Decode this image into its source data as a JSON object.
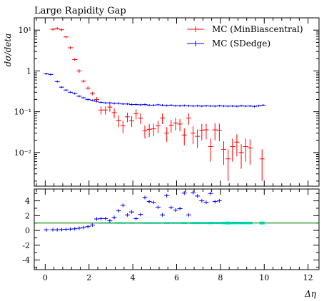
{
  "chart_data": [
    {
      "type": "scatter",
      "title": "Large Rapidity Gap",
      "xlabel": "",
      "ylabel": "dσ/deta",
      "xlim": [
        -0.5,
        12.5
      ],
      "ylim": [
        0.0015,
        20
      ],
      "yscale": "log",
      "yticks": [
        {
          "value": 10,
          "label": "10¹"
        },
        {
          "value": 1,
          "label": "1"
        },
        {
          "value": 0.1,
          "label": "10⁻¹"
        },
        {
          "value": 0.01,
          "label": "10⁻²"
        }
      ],
      "legend_placement": "top-right",
      "series": [
        {
          "name": "MC (MinBiascentral)",
          "color": "#ff0000",
          "points": [
            [
              0.35,
              10.5,
              0.8
            ],
            [
              0.55,
              11.0,
              0.8
            ],
            [
              0.75,
              10.2,
              0.8
            ],
            [
              0.95,
              6.8,
              0.5
            ],
            [
              1.15,
              3.7,
              0.3
            ],
            [
              1.35,
              1.9,
              0.15
            ],
            [
              1.55,
              1.0,
              0.1
            ],
            [
              1.75,
              0.56,
              0.05
            ],
            [
              1.95,
              0.38,
              0.04
            ],
            [
              2.15,
              0.28,
              0.03
            ],
            [
              2.35,
              0.2,
              0.03
            ],
            [
              2.55,
              0.11,
              0.025
            ],
            [
              2.75,
              0.11,
              0.025
            ],
            [
              2.95,
              0.13,
              0.03
            ],
            [
              3.15,
              0.095,
              0.025
            ],
            [
              3.35,
              0.062,
              0.02
            ],
            [
              3.55,
              0.045,
              0.015
            ],
            [
              3.75,
              0.075,
              0.02
            ],
            [
              3.95,
              0.06,
              0.018
            ],
            [
              4.15,
              0.09,
              0.025
            ],
            [
              4.35,
              0.07,
              0.02
            ],
            [
              4.55,
              0.034,
              0.012
            ],
            [
              4.75,
              0.037,
              0.013
            ],
            [
              4.95,
              0.038,
              0.013
            ],
            [
              5.15,
              0.045,
              0.015
            ],
            [
              5.35,
              0.07,
              0.02
            ],
            [
              5.55,
              0.03,
              0.012
            ],
            [
              5.75,
              0.047,
              0.016
            ],
            [
              5.95,
              0.053,
              0.018
            ],
            [
              6.15,
              0.05,
              0.017
            ],
            [
              6.35,
              0.027,
              0.012
            ],
            [
              6.55,
              0.07,
              0.022
            ],
            [
              6.75,
              0.03,
              0.014
            ],
            [
              6.95,
              0.025,
              0.012
            ],
            [
              7.15,
              0.035,
              0.015
            ],
            [
              7.35,
              0.036,
              0.015
            ],
            [
              7.55,
              0.014,
              0.008
            ],
            [
              7.75,
              0.036,
              0.016
            ],
            [
              7.95,
              0.035,
              0.016
            ],
            [
              8.15,
              0.012,
              0.007
            ],
            [
              8.35,
              0.007,
              0.005
            ],
            [
              8.55,
              0.014,
              0.008
            ],
            [
              8.75,
              0.018,
              0.01
            ],
            [
              8.95,
              0.01,
              0.006
            ],
            [
              9.15,
              0.014,
              0.008
            ],
            [
              9.35,
              0.013,
              0.008
            ],
            [
              9.9,
              0.007,
              0.005
            ]
          ]
        },
        {
          "name": "MC (SDedge)",
          "color": "#0000ff",
          "points": [
            [
              0.05,
              0.85
            ],
            [
              0.25,
              0.82
            ],
            [
              0.55,
              0.55
            ],
            [
              0.75,
              0.4
            ],
            [
              0.95,
              0.34
            ],
            [
              1.15,
              0.3
            ],
            [
              1.35,
              0.28
            ],
            [
              1.55,
              0.24
            ],
            [
              1.75,
              0.22
            ],
            [
              1.95,
              0.2
            ],
            [
              2.15,
              0.19
            ],
            [
              2.35,
              0.18
            ],
            [
              2.55,
              0.17
            ],
            [
              2.75,
              0.165
            ],
            [
              2.95,
              0.165
            ],
            [
              3.15,
              0.16
            ],
            [
              3.35,
              0.16
            ],
            [
              3.55,
              0.155
            ],
            [
              3.75,
              0.155
            ],
            [
              3.95,
              0.15
            ],
            [
              4.15,
              0.15
            ],
            [
              4.35,
              0.148
            ],
            [
              4.55,
              0.15
            ],
            [
              4.75,
              0.145
            ],
            [
              4.95,
              0.145
            ],
            [
              5.15,
              0.148
            ],
            [
              5.35,
              0.145
            ],
            [
              5.55,
              0.142
            ],
            [
              5.75,
              0.145
            ],
            [
              5.95,
              0.14
            ],
            [
              6.15,
              0.14
            ],
            [
              6.35,
              0.142
            ],
            [
              6.55,
              0.14
            ],
            [
              6.75,
              0.138
            ],
            [
              6.95,
              0.14
            ],
            [
              7.15,
              0.137
            ],
            [
              7.35,
              0.14
            ],
            [
              7.55,
              0.138
            ],
            [
              7.75,
              0.137
            ],
            [
              7.95,
              0.14
            ],
            [
              8.15,
              0.138
            ],
            [
              8.35,
              0.137
            ],
            [
              8.55,
              0.138
            ],
            [
              8.75,
              0.136
            ],
            [
              8.95,
              0.14
            ],
            [
              9.15,
              0.137
            ],
            [
              9.35,
              0.138
            ],
            [
              9.55,
              0.135
            ],
            [
              9.75,
              0.14
            ],
            [
              9.95,
              0.145
            ]
          ]
        }
      ]
    },
    {
      "type": "scatter",
      "title": "",
      "xlabel": "Δη",
      "ylabel": "",
      "xlim": [
        -0.5,
        12.5
      ],
      "ylim": [
        -5.3,
        5.6
      ],
      "xticks": [
        0,
        2,
        4,
        6,
        8,
        10,
        12
      ],
      "yticks": [
        -4,
        -2,
        0,
        2,
        4
      ],
      "reference_line": 1,
      "reference_color": "#008000",
      "band_color": "#00ffff",
      "series": [
        {
          "name": "",
          "color": "#0000ff",
          "points": [
            [
              0.05,
              0.08
            ],
            [
              0.35,
              0.1
            ],
            [
              0.55,
              0.09
            ],
            [
              0.75,
              0.12
            ],
            [
              0.95,
              0.14
            ],
            [
              1.15,
              0.18
            ],
            [
              1.35,
              0.22
            ],
            [
              1.55,
              0.3
            ],
            [
              1.75,
              0.4
            ],
            [
              1.95,
              0.52
            ],
            [
              2.15,
              0.72
            ],
            [
              2.35,
              1.55
            ],
            [
              2.55,
              1.6
            ],
            [
              2.75,
              1.6
            ],
            [
              2.95,
              1.3
            ],
            [
              3.15,
              1.75
            ],
            [
              3.35,
              2.65
            ],
            [
              3.55,
              3.4
            ],
            [
              3.75,
              2.1
            ],
            [
              3.95,
              2.5
            ],
            [
              4.15,
              1.6
            ],
            [
              4.35,
              2.15
            ],
            [
              4.55,
              4.45
            ],
            [
              4.75,
              3.9
            ],
            [
              4.95,
              3.8
            ],
            [
              5.15,
              3.15
            ],
            [
              5.35,
              2.1
            ],
            [
              5.55,
              4.7
            ],
            [
              5.75,
              3.1
            ],
            [
              5.95,
              2.75
            ],
            [
              6.15,
              2.95
            ],
            [
              6.35,
              5.05
            ],
            [
              6.55,
              2.1
            ],
            [
              6.75,
              5.1
            ],
            [
              6.95,
              4.65
            ],
            [
              7.15,
              4.0
            ],
            [
              7.35,
              3.8
            ],
            [
              7.55,
              5.0
            ],
            [
              7.75,
              3.9
            ],
            [
              7.95,
              4.0
            ]
          ]
        }
      ]
    }
  ],
  "legend": {
    "entries": [
      {
        "label": "MC (MinBiascentral)",
        "color": "#ff0000"
      },
      {
        "label": "MC (SDedge)",
        "color": "#0000ff"
      }
    ]
  }
}
